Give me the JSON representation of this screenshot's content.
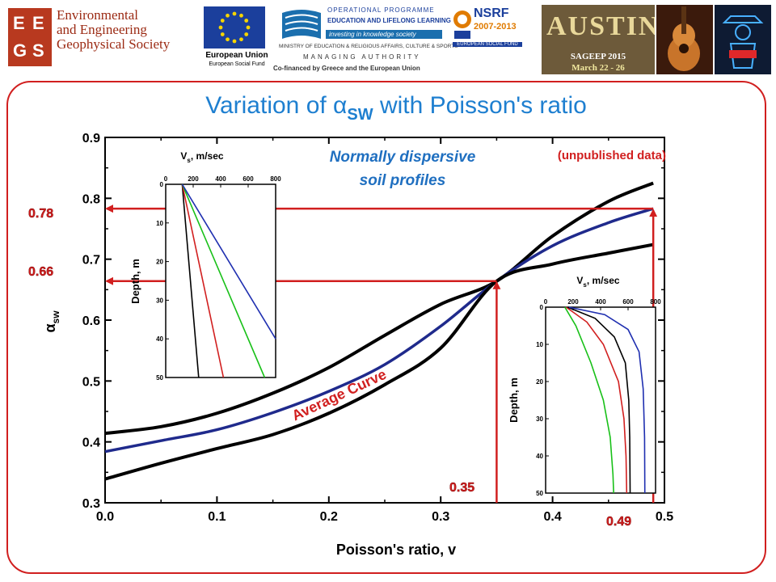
{
  "header": {
    "society_logo_letters": [
      "E",
      "E",
      "G",
      "S"
    ],
    "society_name": [
      "Environmental",
      "and Engineering",
      "Geophysical Society"
    ],
    "eu_caption": "European Union",
    "eu_subcaption": "European Social Fund",
    "op_lines": [
      "OPERATIONAL PROGRAMME",
      "EDUCATION AND LIFELONG LEARNING"
    ],
    "op_tagline": "investing in knowledge society",
    "ministry": "MINISTRY OF EDUCATION & RELIGIOUS AFFAIRS, CULTURE & SPORTS",
    "managing": "MANAGING AUTHORITY",
    "cofinanced": "Co-financed by Greece and the European Union",
    "nsrf_title": "NSRF",
    "nsrf_years": "2007-2013",
    "nsrf_caption": "EUROPEAN SOCIAL FUND",
    "austin_text": "AUSTIN",
    "conference": "SAGEEP 2015",
    "conference_dates": "March 22 - 26"
  },
  "colors": {
    "frame": "#d11f1f",
    "title": "#1e7fd0",
    "average_curve": "#1f2a8c",
    "bound_curve": "#000000",
    "annotation_red": "#d11f1f",
    "subtitle_blue": "#1f6fc0"
  },
  "chart_data": {
    "type": "line",
    "title": "Variation of α",
    "title_subscript": "SW",
    "title_suffix": " with Poisson's ratio",
    "xlabel": "Poisson's ratio, v",
    "ylabel": "α",
    "ylabel_subscript": "sw",
    "xlim": [
      0.0,
      0.5
    ],
    "ylim": [
      0.3,
      0.9
    ],
    "xticks": [
      0.0,
      0.1,
      0.2,
      0.3,
      0.4,
      0.5
    ],
    "yticks": [
      0.3,
      0.4,
      0.5,
      0.6,
      0.7,
      0.8,
      0.9
    ],
    "xtick_labels": [
      "0.0",
      "0.1",
      "0.2",
      "0.3",
      "0.4",
      "0.5"
    ],
    "ytick_labels": [
      "0.3",
      "0.4",
      "0.5",
      "0.6",
      "0.7",
      "0.8",
      "0.9"
    ],
    "grid": false,
    "x": [
      0.0,
      0.05,
      0.1,
      0.15,
      0.2,
      0.25,
      0.3,
      0.35,
      0.4,
      0.45,
      0.49
    ],
    "series": [
      {
        "role": "upper",
        "values": [
          0.414,
          0.425,
          0.447,
          0.48,
          0.522,
          0.575,
          0.626,
          0.664,
          0.738,
          0.795,
          0.825
        ]
      },
      {
        "role": "average",
        "values": [
          0.384,
          0.402,
          0.42,
          0.448,
          0.483,
          0.527,
          0.59,
          0.664,
          0.722,
          0.76,
          0.783
        ]
      },
      {
        "role": "lower",
        "values": [
          0.339,
          0.365,
          0.389,
          0.412,
          0.447,
          0.494,
          0.554,
          0.664,
          0.692,
          0.71,
          0.724
        ]
      }
    ],
    "annotations": {
      "subtitle_lines": [
        "Normally dispersive",
        "soil profiles"
      ],
      "unpublished": "(unpublished data)",
      "average_label": "Average Curve",
      "marker_078": "0.78",
      "marker_066": "0.66",
      "marker_035": "0.35",
      "marker_049": "0.49",
      "arrows": [
        {
          "from_x": 0.49,
          "from_y": 0.3,
          "to_x": 0.49,
          "to_y": 0.783,
          "then_to_x": 0.0
        },
        {
          "from_x": 0.35,
          "from_y": 0.3,
          "to_x": 0.35,
          "to_y": 0.664,
          "then_to_x": 0.0
        }
      ]
    },
    "insets": [
      {
        "xlabel": "V",
        "xlabel_sub": "s",
        "xlabel_suffix": ", m/sec",
        "ylabel": "Depth, m",
        "xticks": [
          0,
          200,
          400,
          600,
          800
        ],
        "yticks": [
          0,
          10,
          20,
          30,
          40,
          50
        ],
        "xtick_labels": [
          "0",
          "200",
          "400",
          "600",
          "800"
        ],
        "ytick_labels": [
          "0",
          "10",
          "20",
          "30",
          "40",
          "50"
        ],
        "xlim": [
          0,
          800
        ],
        "ylim": [
          0,
          50
        ],
        "profiles": [
          {
            "color": "#000000",
            "points": [
              [
                120,
                0
              ],
              [
                240,
                50
              ]
            ]
          },
          {
            "color": "#d11f1f",
            "points": [
              [
                120,
                0
              ],
              [
                420,
                50
              ]
            ]
          },
          {
            "color": "#18c018",
            "points": [
              [
                120,
                0
              ],
              [
                720,
                50
              ]
            ]
          },
          {
            "color": "#1f2fb0",
            "points": [
              [
                120,
                0
              ],
              [
                800,
                40
              ]
            ]
          }
        ]
      },
      {
        "xlabel": "V",
        "xlabel_sub": "s",
        "xlabel_suffix": ", m/sec",
        "ylabel": "Depth, m",
        "xticks": [
          0,
          200,
          400,
          600,
          800
        ],
        "yticks": [
          0,
          10,
          20,
          30,
          40,
          50
        ],
        "xtick_labels": [
          "0",
          "200",
          "400",
          "600",
          "800"
        ],
        "ytick_labels": [
          "0",
          "10",
          "20",
          "30",
          "40",
          "50"
        ],
        "xlim": [
          0,
          800
        ],
        "ylim": [
          0,
          50
        ],
        "profiles": [
          {
            "color": "#18c018",
            "points": [
              [
                140,
                0
              ],
              [
                220,
                5
              ],
              [
                330,
                15
              ],
              [
                420,
                25
              ],
              [
                470,
                35
              ],
              [
                490,
                45
              ],
              [
                495,
                50
              ]
            ]
          },
          {
            "color": "#d11f1f",
            "points": [
              [
                150,
                0
              ],
              [
                300,
                4
              ],
              [
                420,
                10
              ],
              [
                530,
                20
              ],
              [
                570,
                30
              ],
              [
                585,
                40
              ],
              [
                590,
                50
              ]
            ]
          },
          {
            "color": "#000000",
            "points": [
              [
                160,
                0
              ],
              [
                360,
                3
              ],
              [
                500,
                8
              ],
              [
                580,
                15
              ],
              [
                605,
                25
              ],
              [
                612,
                35
              ],
              [
                615,
                50
              ]
            ]
          },
          {
            "color": "#1f2fb0",
            "points": [
              [
                170,
                0
              ],
              [
                430,
                2
              ],
              [
                600,
                6
              ],
              [
                680,
                12
              ],
              [
                710,
                22
              ],
              [
                720,
                35
              ],
              [
                722,
                50
              ]
            ]
          }
        ]
      }
    ]
  }
}
